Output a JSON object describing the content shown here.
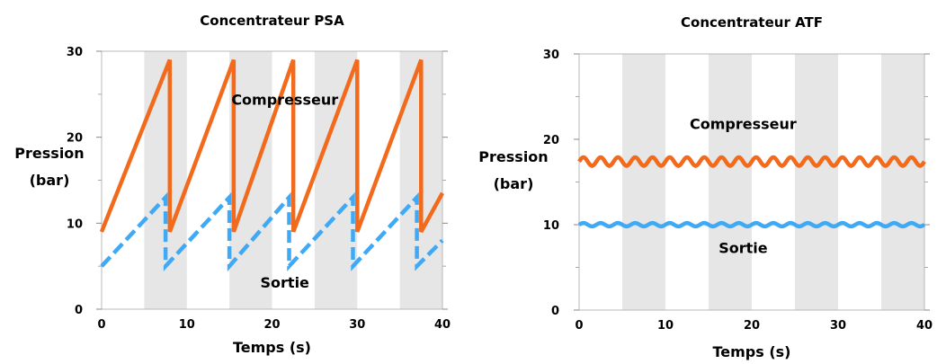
{
  "chart_data": [
    {
      "type": "line",
      "title": "Concentrateur PSA",
      "xlabel": "Temps (s)",
      "ylabel_lines": [
        "Pression",
        "(bar)"
      ],
      "xlim": [
        0,
        40
      ],
      "ylim": [
        0,
        30
      ],
      "xticks": [
        0,
        10,
        20,
        30,
        40
      ],
      "yticks": [
        0,
        10,
        20,
        30
      ],
      "grid": "alternating vertical bands every 5 s",
      "band_color": "#e6e6e6",
      "series": [
        {
          "name": "Compresseur",
          "color": "#f26a1b",
          "style": "solid",
          "x": [
            0,
            8,
            8,
            15.5,
            15.5,
            22.5,
            22.5,
            30,
            30,
            37.5,
            37.5,
            40
          ],
          "y": [
            9,
            29,
            9,
            29,
            9,
            29,
            9,
            29,
            9,
            29,
            9,
            13.5
          ]
        },
        {
          "name": "Sortie",
          "color": "#3fa9f5",
          "style": "dashed",
          "x": [
            0,
            7.5,
            7.5,
            15,
            15,
            22,
            22,
            29.5,
            29.5,
            37,
            37,
            40
          ],
          "y": [
            5,
            13,
            5,
            13,
            5,
            13,
            5,
            13,
            5,
            13,
            5,
            8
          ]
        }
      ],
      "annotations": [
        {
          "text": "Compresseur",
          "x": 21.5,
          "y": 23.8
        },
        {
          "text": "Sortie",
          "x": 21.5,
          "y": 2.5
        }
      ]
    },
    {
      "type": "line",
      "title": "Concentrateur ATF",
      "xlabel": "Temps (s)",
      "ylabel_lines": [
        "Pression",
        "(bar)"
      ],
      "xlim": [
        0,
        40
      ],
      "ylim": [
        0,
        30
      ],
      "xticks": [
        0,
        10,
        20,
        30,
        40
      ],
      "yticks": [
        0,
        10,
        20,
        30
      ],
      "grid": "alternating vertical bands every 5 s",
      "band_color": "#e6e6e6",
      "series": [
        {
          "name": "Compresseur",
          "color": "#f26a1b",
          "style": "solid",
          "mean": 17.4,
          "ripple_amplitude": 0.5,
          "ripple_period": 2
        },
        {
          "name": "Sortie",
          "color": "#3fa9f5",
          "style": "solid",
          "mean": 10,
          "ripple_amplitude": 0.2,
          "ripple_period": 2
        }
      ],
      "annotations": [
        {
          "text": "Compresseur",
          "x": 19,
          "y": 21.2
        },
        {
          "text": "Sortie",
          "x": 19,
          "y": 6.7
        }
      ]
    }
  ]
}
